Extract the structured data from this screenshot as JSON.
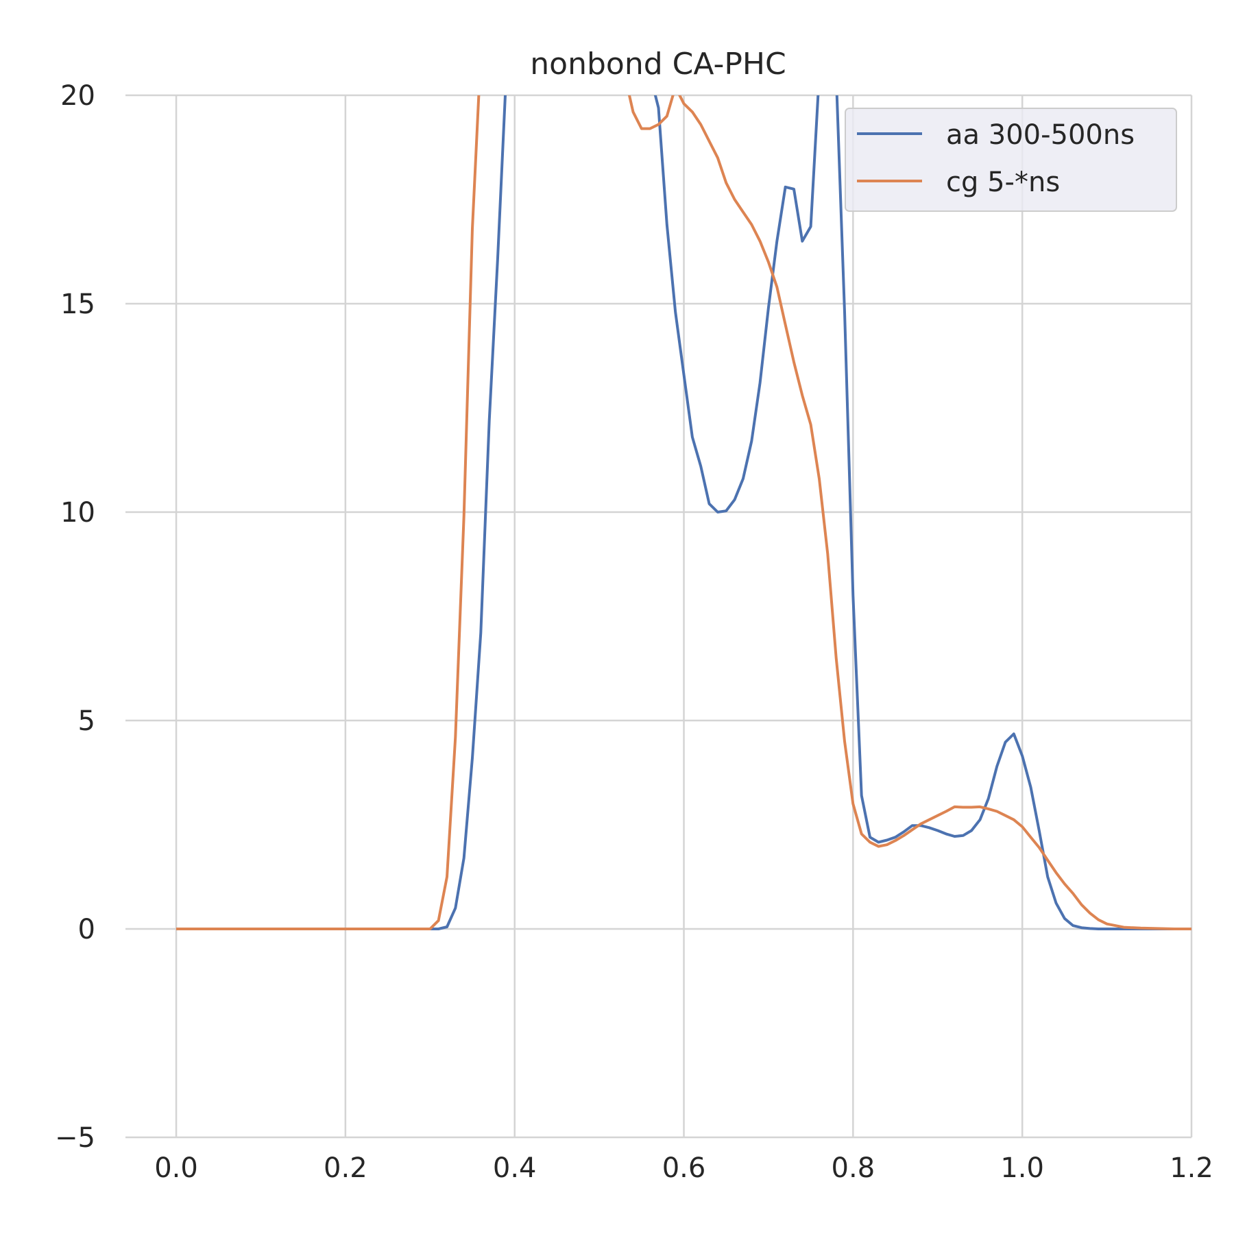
{
  "chart_data": {
    "type": "line",
    "title": "nonbond CA-PHC",
    "xlabel": "",
    "ylabel": "",
    "xlim": [
      -0.06,
      1.2
    ],
    "ylim": [
      -5,
      20
    ],
    "xticks": [
      0.0,
      0.2,
      0.4,
      0.6,
      0.8,
      1.0,
      1.2
    ],
    "xtick_labels": [
      "0.0",
      "0.2",
      "0.4",
      "0.6",
      "0.8",
      "1.0",
      "1.2"
    ],
    "yticks": [
      -5,
      0,
      5,
      10,
      15,
      20
    ],
    "ytick_labels": [
      "−5",
      "0",
      "5",
      "10",
      "15",
      "20"
    ],
    "grid": true,
    "legend_position": "top-right",
    "series": [
      {
        "name": "aa 300-500ns",
        "color": "#4c72b0",
        "x": [
          0.0,
          0.1,
          0.2,
          0.3,
          0.31,
          0.32,
          0.33,
          0.34,
          0.35,
          0.36,
          0.37,
          0.38,
          0.39,
          0.4,
          0.55,
          0.56,
          0.57,
          0.58,
          0.59,
          0.6,
          0.61,
          0.62,
          0.63,
          0.64,
          0.65,
          0.66,
          0.67,
          0.68,
          0.69,
          0.7,
          0.71,
          0.72,
          0.73,
          0.74,
          0.75,
          0.76,
          0.77,
          0.78,
          0.79,
          0.8,
          0.81,
          0.82,
          0.83,
          0.84,
          0.85,
          0.86,
          0.87,
          0.88,
          0.89,
          0.9,
          0.91,
          0.92,
          0.93,
          0.94,
          0.95,
          0.96,
          0.97,
          0.98,
          0.99,
          1.0,
          1.01,
          1.02,
          1.03,
          1.04,
          1.05,
          1.06,
          1.07,
          1.08,
          1.09,
          1.1,
          1.15,
          1.2
        ],
        "y": [
          0,
          0,
          0,
          0,
          0.0,
          0.05,
          0.5,
          1.7,
          4.1,
          7.1,
          12.2,
          16.1,
          20.5,
          30,
          30,
          20.5,
          19.7,
          16.9,
          14.8,
          13.3,
          11.8,
          11.1,
          10.2,
          10.0,
          10.03,
          10.3,
          10.8,
          11.7,
          13.1,
          14.9,
          16.5,
          17.8,
          17.75,
          16.5,
          16.85,
          20.5,
          25,
          20.5,
          14.8,
          8.0,
          3.2,
          2.2,
          2.08,
          2.13,
          2.2,
          2.33,
          2.48,
          2.48,
          2.43,
          2.36,
          2.28,
          2.22,
          2.24,
          2.36,
          2.62,
          3.13,
          3.9,
          4.48,
          4.68,
          4.15,
          3.4,
          2.35,
          1.25,
          0.62,
          0.25,
          0.08,
          0.03,
          0.01,
          0.0,
          0.0,
          0.0,
          0.0
        ]
      },
      {
        "name": "cg 5-*ns",
        "color": "#dd8452",
        "x": [
          0.0,
          0.1,
          0.2,
          0.29,
          0.3,
          0.31,
          0.32,
          0.33,
          0.34,
          0.35,
          0.36,
          0.37,
          0.5,
          0.53,
          0.54,
          0.55,
          0.56,
          0.57,
          0.58,
          0.59,
          0.6,
          0.61,
          0.62,
          0.63,
          0.64,
          0.65,
          0.66,
          0.67,
          0.68,
          0.69,
          0.7,
          0.71,
          0.72,
          0.73,
          0.74,
          0.75,
          0.76,
          0.77,
          0.78,
          0.79,
          0.8,
          0.81,
          0.82,
          0.83,
          0.84,
          0.85,
          0.86,
          0.87,
          0.88,
          0.89,
          0.9,
          0.91,
          0.92,
          0.93,
          0.94,
          0.95,
          0.96,
          0.97,
          0.98,
          0.99,
          1.0,
          1.01,
          1.02,
          1.03,
          1.04,
          1.05,
          1.06,
          1.07,
          1.08,
          1.09,
          1.1,
          1.12,
          1.14,
          1.16,
          1.18,
          1.2
        ],
        "y": [
          0,
          0,
          0,
          0,
          0.0,
          0.2,
          1.25,
          4.6,
          9.9,
          16.8,
          21.0,
          30,
          30,
          20.5,
          19.6,
          19.2,
          19.2,
          19.3,
          19.5,
          20.2,
          19.8,
          19.6,
          19.3,
          18.9,
          18.5,
          17.9,
          17.5,
          17.2,
          16.9,
          16.5,
          16.0,
          15.4,
          14.5,
          13.6,
          12.8,
          12.1,
          10.8,
          9.0,
          6.5,
          4.5,
          3.0,
          2.28,
          2.08,
          1.98,
          2.02,
          2.12,
          2.24,
          2.38,
          2.52,
          2.62,
          2.72,
          2.82,
          2.93,
          2.92,
          2.92,
          2.93,
          2.88,
          2.82,
          2.72,
          2.62,
          2.45,
          2.2,
          1.95,
          1.65,
          1.35,
          1.08,
          0.85,
          0.58,
          0.38,
          0.22,
          0.12,
          0.04,
          0.02,
          0.01,
          0.0,
          0.0
        ]
      }
    ]
  }
}
